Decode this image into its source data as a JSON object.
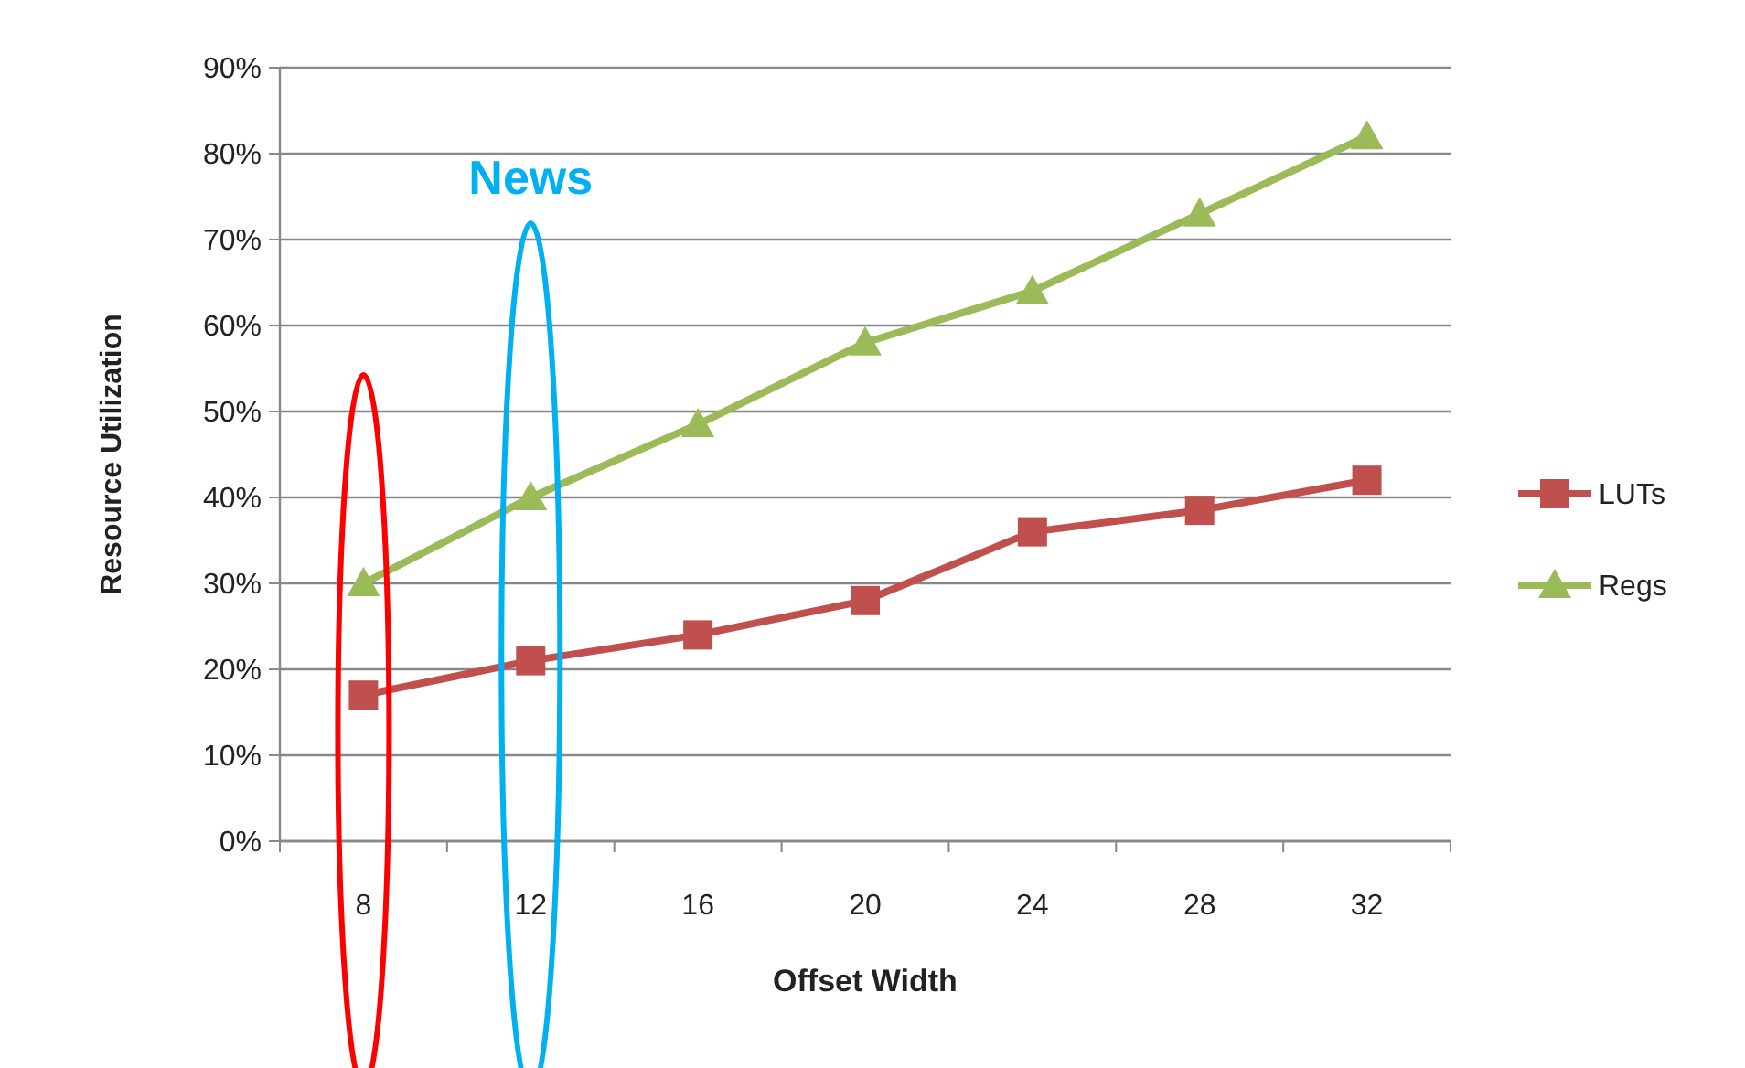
{
  "chart_data": {
    "type": "line",
    "xlabel": "Offset Width",
    "ylabel": "Resource Utilization",
    "categories": [
      "8",
      "12",
      "16",
      "20",
      "24",
      "28",
      "32"
    ],
    "series": [
      {
        "name": "LUTs",
        "color": "#c0504d",
        "marker": "square",
        "values": [
          17,
          21,
          24,
          28,
          36,
          38.5,
          42
        ]
      },
      {
        "name": "Regs",
        "color": "#9bbb59",
        "marker": "triangle",
        "values": [
          30,
          40,
          48.5,
          58,
          64,
          73,
          82
        ]
      }
    ],
    "ylim": [
      0,
      90
    ],
    "yticks": [
      {
        "value": 0,
        "label": "0%"
      },
      {
        "value": 10,
        "label": "10%"
      },
      {
        "value": 20,
        "label": "20%"
      },
      {
        "value": 30,
        "label": "30%"
      },
      {
        "value": 40,
        "label": "40%"
      },
      {
        "value": 50,
        "label": "50%"
      },
      {
        "value": 60,
        "label": "60%"
      },
      {
        "value": 70,
        "label": "70%"
      },
      {
        "value": 80,
        "label": "80%"
      },
      {
        "value": 90,
        "label": "90%"
      }
    ],
    "grid": "y",
    "legend": "right",
    "annotations": [
      "News"
    ]
  }
}
